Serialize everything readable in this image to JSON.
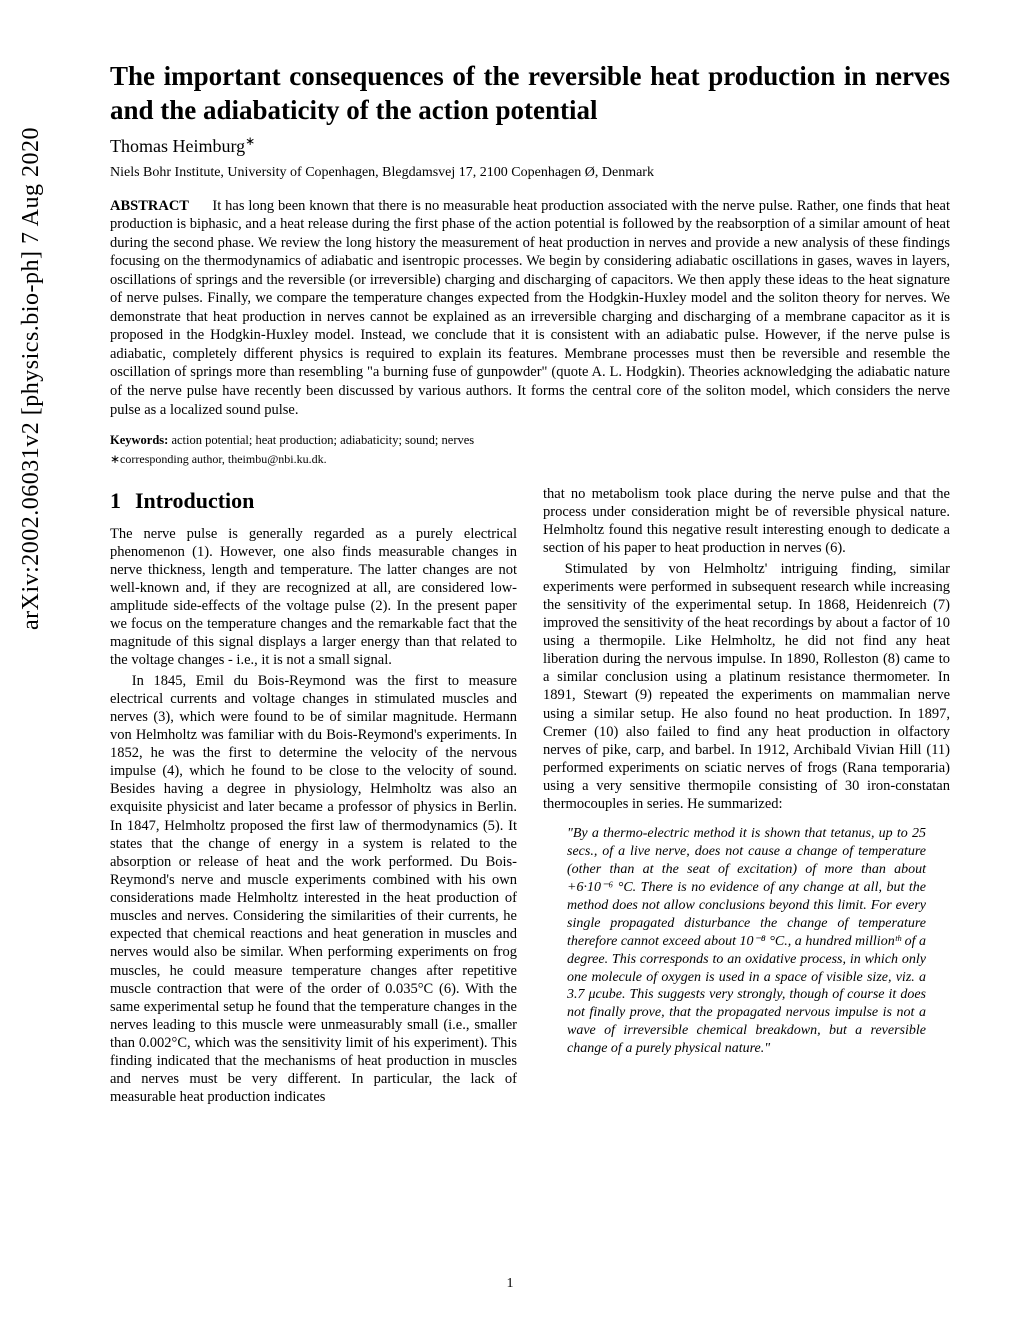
{
  "arxiv_stamp": "arXiv:2002.06031v2  [physics.bio-ph]  7 Aug 2020",
  "title": "The important consequences of the reversible heat production in nerves and the adiabaticity of the action potential",
  "author_name": "Thomas Heimburg",
  "author_sup": "∗",
  "affiliation": "Niels Bohr Institute, University of Copenhagen, Blegdamsvej 17, 2100 Copenhagen Ø, Denmark",
  "abstract_label": "ABSTRACT",
  "abstract_body": "It has long been known that there is no measurable heat production associated with the nerve pulse. Rather, one finds that heat production is biphasic, and a heat release during the first phase of the action potential is followed by the reabsorption of a similar amount of heat during the second phase. We review the long history the measurement of heat production in nerves and provide a new analysis of these findings focusing on the thermodynamics of adiabatic and isentropic processes. We begin by considering adiabatic oscillations in gases, waves in layers, oscillations of springs and the reversible (or irreversible) charging and discharging of capacitors. We then apply these ideas to the heat signature of nerve pulses. Finally, we compare the temperature changes expected from the Hodgkin-Huxley model and the soliton theory for nerves. We demonstrate that heat production in nerves cannot be explained as an irreversible charging and discharging of a membrane capacitor as it is proposed in the Hodgkin-Huxley model. Instead, we conclude that it is consistent with an adiabatic pulse. However, if the nerve pulse is adiabatic, completely different physics is required to explain its features. Membrane processes must then be reversible and resemble the oscillation of springs more than resembling \"a burning fuse of gunpowder\" (quote A. L. Hodgkin). Theories acknowledging the adiabatic nature of the nerve pulse have recently been discussed by various authors. It forms the central core of the soliton model, which considers the nerve pulse as a localized sound pulse.",
  "keywords_label": "Keywords:",
  "keywords_body": "action potential; heat production; adiabaticity; sound; nerves",
  "corresponding": "∗corresponding author, theimbu@nbi.ku.dk.",
  "section_num": "1",
  "section_title": "Introduction",
  "col1_p1": "The nerve pulse is generally regarded as a purely electrical phenomenon (1). However, one also finds measurable changes in nerve thickness, length and temperature. The latter changes are not well-known and, if they are recognized at all, are considered low-amplitude side-effects of the voltage pulse (2). In the present paper we focus on the temperature changes and the remarkable fact that the magnitude of this signal displays a larger energy than that related to the voltage changes - i.e., it is not a small signal.",
  "col1_p2": "In 1845, Emil du Bois-Reymond was the first to measure electrical currents and voltage changes in stimulated muscles and nerves (3), which were found to be of similar magnitude. Hermann von Helmholtz was familiar with du Bois-Reymond's experiments. In 1852, he was the first to determine the velocity of the nervous impulse (4), which he found to be close to the velocity of sound. Besides having a degree in physiology, Helmholtz was also an exquisite physicist and later became a professor of physics in Berlin. In 1847, Helmholtz proposed the first law of thermodynamics (5). It states that the change of energy in a system is related to the absorption or release of heat and the work performed. Du Bois-Reymond's nerve and muscle experiments combined with his own considerations made Helmholtz interested in the heat production of muscles and nerves. Considering the similarities of their currents, he expected that chemical reactions and heat generation in muscles and nerves would also be similar. When performing experiments on frog muscles, he could measure temperature changes after repetitive muscle contraction that were of the order of 0.035°C (6). With the same experimental setup he found that the temperature changes in the nerves leading to this muscle were unmeasurably small (i.e., smaller than 0.002°C, which was the sensitivity limit of his experiment). This finding indicated that the mechanisms of heat production in muscles and nerves must be very different. In particular, the lack of measurable heat production indicates",
  "col2_p1": "that no metabolism took place during the nerve pulse and that the process under consideration might be of reversible physical nature. Helmholtz found this negative result interesting enough to dedicate a section of his paper to heat production in nerves (6).",
  "col2_p2": "Stimulated by von Helmholtz' intriguing finding, similar experiments were performed in subsequent research while increasing the sensitivity of the experimental setup. In 1868, Heidenreich (7) improved the sensitivity of the heat recordings by about a factor of 10 using a thermopile. Like Helmholtz, he did not find any heat liberation during the nervous impulse. In 1890, Rolleston (8) came to a similar conclusion using a platinum resistance thermometer. In 1891, Stewart (9) repeated the experiments on mammalian nerve using a similar setup. He also found no heat production. In 1897, Cremer (10) also failed to find any heat production in olfactory nerves of pike, carp, and barbel. In 1912, Archibald Vivian Hill (11) performed experiments on sciatic nerves of frogs (Rana temporaria) using a very sensitive thermopile consisting of 30 iron-constatan thermocouples in series. He summarized:",
  "quote": "\"By a thermo-electric method it is shown that tetanus, up to 25 secs., of a live nerve, does not cause a change of temperature (other than at the seat of excitation) of more than about +6·10⁻⁶ °C. There is no evidence of any change at all, but the method does not allow conclusions beyond this limit. For every single propagated disturbance the change of temperature therefore cannot exceed about 10⁻⁸ °C., a hundred millionᵗʰ of a degree. This corresponds to an oxidative process, in which only one molecule of oxygen is used in a space of visible size, viz. a 3.7 μcube. This suggests very strongly, though of course it does not finally prove, that the propagated nervous impulse is not a wave of irreversible chemical breakdown, but a reversible change of a purely physical nature.\"",
  "page_number": "1"
}
